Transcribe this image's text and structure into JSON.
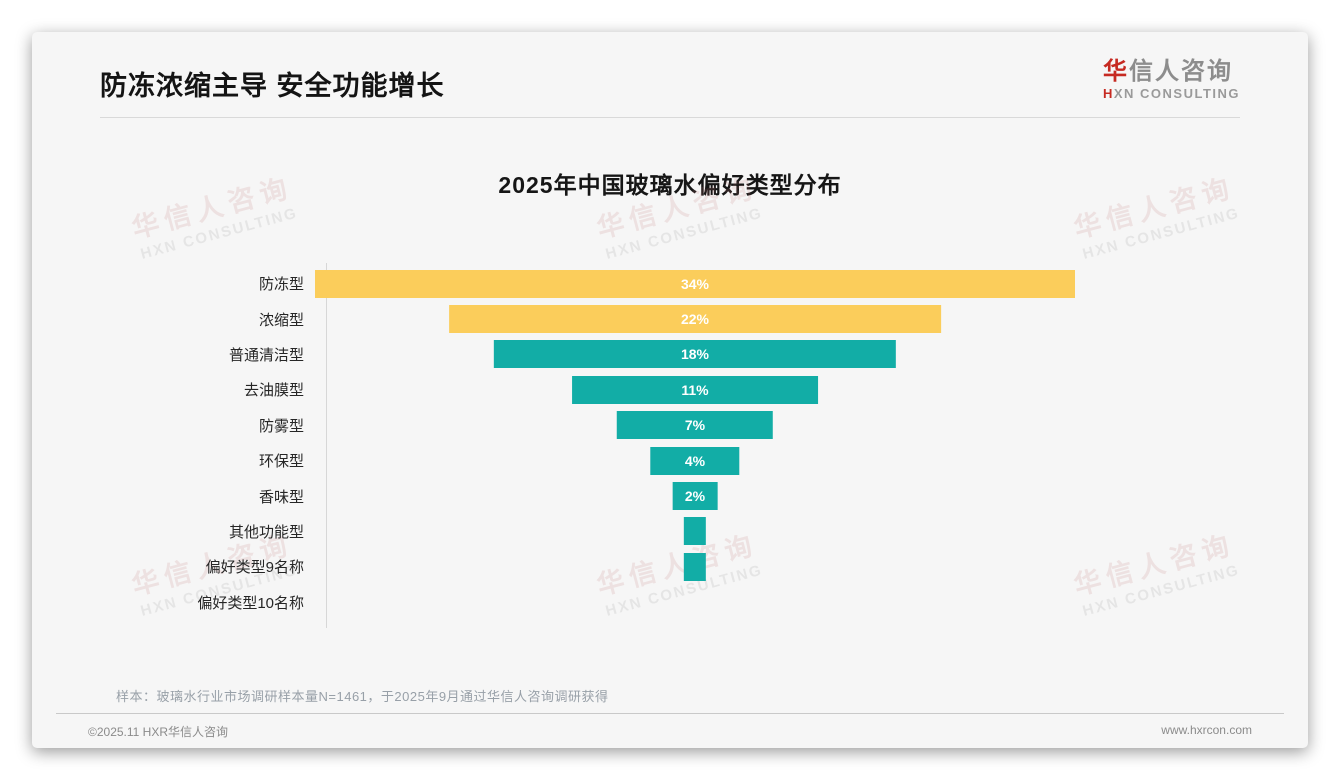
{
  "page": {
    "header": {
      "title": "防冻浓缩主导 安全功能增长"
    },
    "logo": {
      "cn_accent": "华",
      "cn_rest": "信人咨询",
      "en_accent": "H",
      "en_rest": "XN CONSULTING"
    },
    "watermark": {
      "cn": "华信人咨询",
      "en": "HXN CONSULTING"
    },
    "footnote": "样本：玻璃水行业市场调研样本量N=1461，于2025年9月通过华信人咨询调研获得",
    "footer": {
      "left": "©2025.11 HXR华信人咨询",
      "right": "www.hxrcon.com"
    }
  },
  "chart_data": {
    "type": "bar",
    "subtype": "centered-funnel-horizontal",
    "title": "2025年中国玻璃水偏好类型分布",
    "categories": [
      "防冻型",
      "浓缩型",
      "普通清洁型",
      "去油膜型",
      "防雾型",
      "环保型",
      "香味型",
      "其他功能型",
      "偏好类型9名称",
      "偏好类型10名称"
    ],
    "values": [
      34,
      22,
      18,
      11,
      7,
      4,
      2,
      1,
      1,
      0
    ],
    "value_labels": [
      "34%",
      "22%",
      "18%",
      "11%",
      "7%",
      "4%",
      "2%",
      "",
      "",
      ""
    ],
    "unit": "%",
    "xlim": [
      0,
      34
    ],
    "bar_colors": [
      "#FBCD5B",
      "#FBCD5B",
      "#12ADA6",
      "#12ADA6",
      "#12ADA6",
      "#12ADA6",
      "#12ADA6",
      "#12ADA6",
      "#12ADA6",
      "#12ADA6"
    ],
    "colors": {
      "yellow": "#FBCD5B",
      "teal": "#12ADA6"
    },
    "grid": false,
    "legend": false
  }
}
